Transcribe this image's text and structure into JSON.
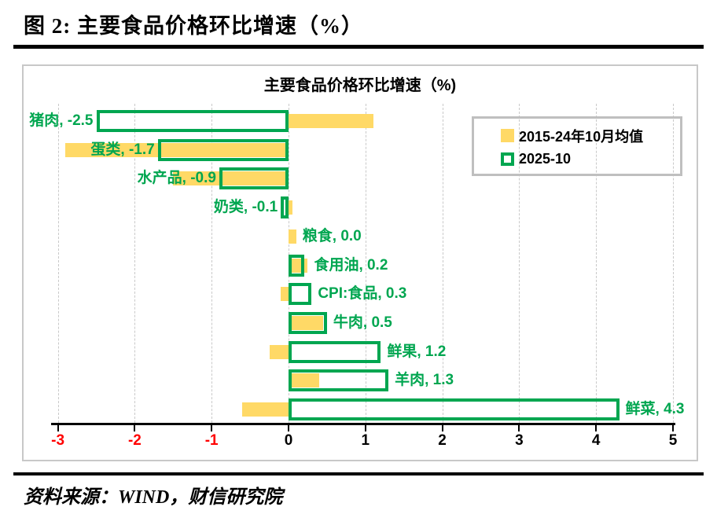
{
  "figure": {
    "title": "图 2:  主要食品价格环比增速（%）",
    "source_note": "资料来源：WIND，财信研究院"
  },
  "chart": {
    "title": "主要食品价格环比增速（%)",
    "legend": [
      {
        "label": "2015-24年10月均值",
        "swatch": "filled-square"
      },
      {
        "label": "2025-10",
        "swatch": "outline-square"
      }
    ],
    "colors": {
      "average_series": "#FFD966",
      "current_series": "#00A650",
      "label_text": "#00A650",
      "negative_tick": "#FF0000",
      "positive_tick": "#000000",
      "gridline": "#C9C9C9"
    }
  },
  "chart_data": {
    "type": "bar",
    "orientation": "horizontal",
    "title": "主要食品价格环比增速（%)",
    "categories": [
      "猪肉",
      "蛋类",
      "水产品",
      "奶类",
      "粮食",
      "食用油",
      "CPI:食品",
      "牛肉",
      "鲜果",
      "羊肉",
      "鲜菜"
    ],
    "series": [
      {
        "name": "2015-24年10月均值",
        "values": [
          1.1,
          -2.9,
          -1.5,
          0.05,
          0.1,
          0.25,
          -0.1,
          0.45,
          -0.25,
          0.4,
          -0.6
        ]
      },
      {
        "name": "2025-10",
        "values": [
          -2.5,
          -1.7,
          -0.9,
          -0.1,
          0.0,
          0.2,
          0.3,
          0.5,
          1.2,
          1.3,
          4.3
        ]
      }
    ],
    "data_labels": [
      "猪肉, -2.5",
      "蛋类, -1.7",
      "水产品, -0.9",
      "奶类, -0.1",
      "粮食, 0.0",
      "食用油, 0.2",
      "CPI:食品, 0.3",
      "牛肉, 0.5",
      "鲜果, 1.2",
      "羊肉, 1.3",
      "鲜菜, 4.3"
    ],
    "xlim": [
      -3,
      5
    ],
    "x_ticks": [
      -3,
      -2,
      -1,
      0,
      1,
      2,
      3,
      4,
      5
    ],
    "grid": "vertical-dashed",
    "legend_position": "top-right"
  }
}
